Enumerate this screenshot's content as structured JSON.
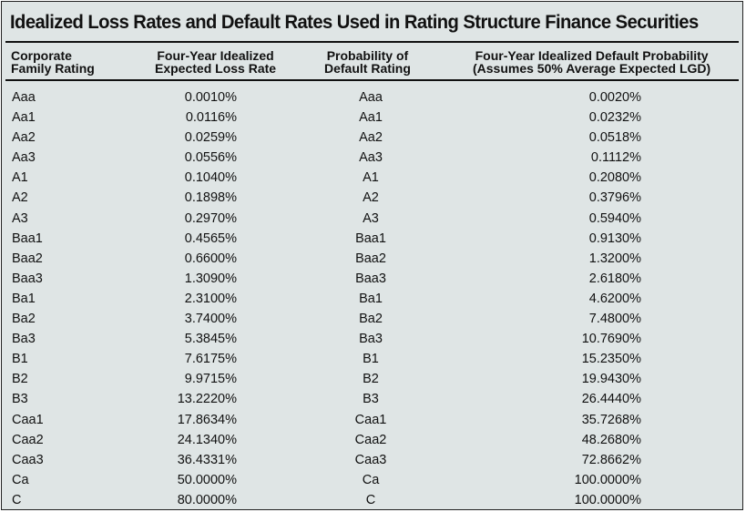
{
  "title": "Idealized Loss Rates and Default Rates Used in Rating Structure Finance Securities",
  "headers": {
    "col1": [
      "Corporate",
      "Family Rating"
    ],
    "col2": [
      "Four-Year Idealized",
      "Expected Loss Rate"
    ],
    "col3": [
      "Probability of",
      "Default Rating"
    ],
    "col4": [
      "Four-Year Idealized Default Probability",
      "(Assumes 50% Average Expected LGD)"
    ]
  },
  "rows": [
    [
      "Aaa",
      "0.0010%",
      "Aaa",
      "0.0020%"
    ],
    [
      "Aa1",
      "0.0116%",
      "Aa1",
      "0.0232%"
    ],
    [
      "Aa2",
      "0.0259%",
      "Aa2",
      "0.0518%"
    ],
    [
      "Aa3",
      "0.0556%",
      "Aa3",
      "0.1112%"
    ],
    [
      "A1",
      "0.1040%",
      "A1",
      "0.2080%"
    ],
    [
      "A2",
      "0.1898%",
      "A2",
      "0.3796%"
    ],
    [
      "A3",
      "0.2970%",
      "A3",
      "0.5940%"
    ],
    [
      "Baa1",
      "0.4565%",
      "Baa1",
      "0.9130%"
    ],
    [
      "Baa2",
      "0.6600%",
      "Baa2",
      "1.3200%"
    ],
    [
      "Baa3",
      "1.3090%",
      "Baa3",
      "2.6180%"
    ],
    [
      "Ba1",
      "2.3100%",
      "Ba1",
      "4.6200%"
    ],
    [
      "Ba2",
      "3.7400%",
      "Ba2",
      "7.4800%"
    ],
    [
      "Ba3",
      "5.3845%",
      "Ba3",
      "10.7690%"
    ],
    [
      "B1",
      "7.6175%",
      "B1",
      "15.2350%"
    ],
    [
      "B2",
      "9.9715%",
      "B2",
      "19.9430%"
    ],
    [
      "B3",
      "13.2220%",
      "B3",
      "26.4440%"
    ],
    [
      "Caa1",
      "17.8634%",
      "Caa1",
      "35.7268%"
    ],
    [
      "Caa2",
      "24.1340%",
      "Caa2",
      "48.2680%"
    ],
    [
      "Caa3",
      "36.4331%",
      "Caa3",
      "72.8662%"
    ],
    [
      "Ca",
      "50.0000%",
      "Ca",
      "100.0000%"
    ],
    [
      "C",
      "80.0000%",
      "C",
      "100.0000%"
    ]
  ]
}
